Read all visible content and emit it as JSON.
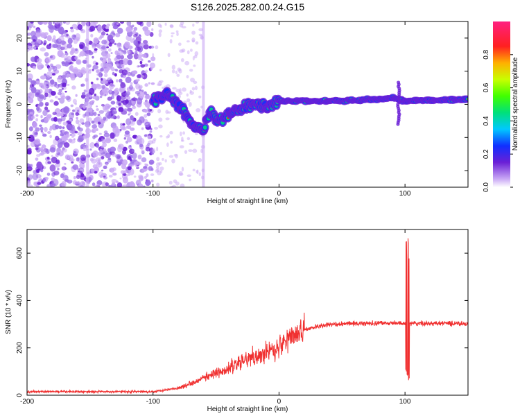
{
  "title": "S126.2025.282.00.24.G15",
  "chart_data": [
    {
      "type": "heatmap",
      "xlabel": "Height of straight line (km)",
      "ylabel": "Frequency (Hz)",
      "xlim": [
        -200,
        150
      ],
      "ylim": [
        -25,
        25
      ],
      "xticks": [
        -200,
        -100,
        0,
        100
      ],
      "yticks": [
        -20,
        -10,
        0,
        10,
        20
      ],
      "colorbar": {
        "label": "Normalized spectral amplitude",
        "range": [
          0,
          1
        ],
        "ticks": [
          "0.0",
          "0.2",
          "0.4",
          "0.6",
          "0.8"
        ],
        "colors": [
          "#ffffff",
          "#c9a8f5",
          "#6a1fd6",
          "#1030ff",
          "#00c8ff",
          "#00e07a",
          "#40ff00",
          "#c8ff00",
          "#ffb000",
          "#ff2020",
          "#ff2080"
        ]
      },
      "ridge": {
        "x": [
          -100,
          -90,
          -80,
          -70,
          -60,
          -55,
          -50,
          -40,
          -30,
          -20,
          -10,
          0,
          10,
          20,
          40,
          60,
          80,
          90,
          100,
          120,
          150
        ],
        "freq": [
          0.5,
          3.5,
          0,
          -5,
          -8,
          -2,
          -5,
          -3,
          -1,
          0.5,
          -1,
          1,
          1,
          1,
          1,
          1.2,
          1.5,
          2,
          1,
          1.2,
          1.5
        ]
      }
    },
    {
      "type": "line",
      "xlabel": "Height of straight line (km)",
      "ylabel": "SNR (10 * v/v)",
      "xlim": [
        -200,
        150
      ],
      "ylim": [
        0,
        700
      ],
      "xticks": [
        -200,
        -100,
        0,
        100
      ],
      "yticks": [
        0,
        200,
        400,
        600
      ],
      "color": "#f03030",
      "trend": {
        "x": [
          -200,
          -150,
          -100,
          -80,
          -70,
          -60,
          -50,
          -40,
          -30,
          -20,
          -10,
          0,
          10,
          20,
          30,
          40,
          50,
          60,
          80,
          100,
          150
        ],
        "y": [
          15,
          15,
          15,
          30,
          50,
          75,
          90,
          110,
          140,
          165,
          180,
          205,
          250,
          275,
          290,
          298,
          302,
          303,
          305,
          303,
          303
        ]
      },
      "spike": {
        "x": 102,
        "max": 690,
        "min": 60
      }
    }
  ]
}
